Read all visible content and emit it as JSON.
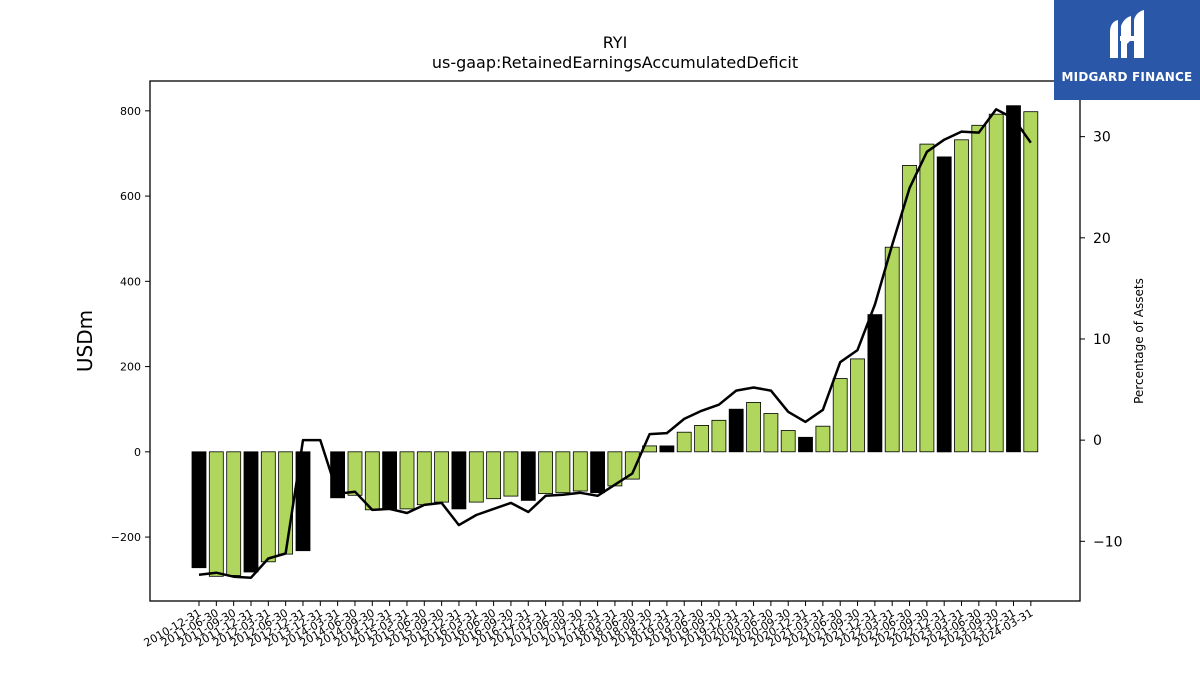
{
  "brand": {
    "name": "MIDGARD FINANCE",
    "bg_color": "#2a57a8"
  },
  "chart_data": {
    "type": "bar",
    "title": "RYI",
    "subtitle": "us-gaap:RetainedEarningsAccumulatedDeficit",
    "ylabel": "USDm",
    "y2label": "Percentage of Assets",
    "ylim": [
      -350,
      870
    ],
    "y2lim": [
      -15.9,
      35.5
    ],
    "yticks": [
      -200,
      0,
      200,
      400,
      600,
      800
    ],
    "y2ticks": [
      -10,
      0,
      10,
      20,
      30
    ],
    "grid": false,
    "bar_colors": {
      "annual": "#000000",
      "quarterly": "#b0d65e"
    },
    "line_color": "#000000",
    "x_tick_labels": [
      "2010-12-31",
      "2011-06-30",
      "2011-09-30",
      "2011-12-31",
      "2012-03-31",
      "2012-06-30",
      "2012-12-31",
      "2013-12-31",
      "2014-03-31",
      "2014-06-30",
      "2014-09-30",
      "2014-12-31",
      "2015-03-31",
      "2015-06-30",
      "2015-09-30",
      "2015-12-31",
      "2016-03-31",
      "2016-06-30",
      "2016-09-30",
      "2016-12-31",
      "2017-03-31",
      "2017-06-30",
      "2017-09-30",
      "2017-12-31",
      "2018-03-31",
      "2018-06-30",
      "2018-09-30",
      "2018-12-31",
      "2019-03-31",
      "2019-06-30",
      "2019-09-30",
      "2019-12-31",
      "2020-03-31",
      "2020-06-30",
      "2020-09-30",
      "2020-12-31",
      "2021-03-31",
      "2021-06-30",
      "2021-09-30",
      "2021-12-31",
      "2022-03-31",
      "2022-06-30",
      "2022-09-30",
      "2022-12-31",
      "2023-03-31",
      "2023-06-30",
      "2023-09-30",
      "2023-12-31",
      "2024-03-31"
    ],
    "bars": [
      {
        "i": 0,
        "value": -272,
        "annual": true
      },
      {
        "i": 1,
        "value": -292,
        "annual": false
      },
      {
        "i": 2,
        "value": -290,
        "annual": false
      },
      {
        "i": 3,
        "value": -282,
        "annual": true
      },
      {
        "i": 4,
        "value": -258,
        "annual": false
      },
      {
        "i": 5,
        "value": -240,
        "annual": false
      },
      {
        "i": 6,
        "value": -232,
        "annual": true
      },
      {
        "i": 8,
        "value": -108,
        "annual": true
      },
      {
        "i": 9,
        "value": -102,
        "annual": false
      },
      {
        "i": 10,
        "value": -136,
        "annual": false
      },
      {
        "i": 11,
        "value": -134,
        "annual": true
      },
      {
        "i": 12,
        "value": -134,
        "annual": false
      },
      {
        "i": 13,
        "value": -124,
        "annual": false
      },
      {
        "i": 14,
        "value": -118,
        "annual": false
      },
      {
        "i": 15,
        "value": -134,
        "annual": true
      },
      {
        "i": 16,
        "value": -118,
        "annual": false
      },
      {
        "i": 17,
        "value": -110,
        "annual": false
      },
      {
        "i": 18,
        "value": -104,
        "annual": false
      },
      {
        "i": 19,
        "value": -114,
        "annual": true
      },
      {
        "i": 20,
        "value": -98,
        "annual": false
      },
      {
        "i": 21,
        "value": -96,
        "annual": false
      },
      {
        "i": 22,
        "value": -92,
        "annual": false
      },
      {
        "i": 23,
        "value": -96,
        "annual": true
      },
      {
        "i": 24,
        "value": -80,
        "annual": false
      },
      {
        "i": 25,
        "value": -64,
        "annual": false
      },
      {
        "i": 26,
        "value": 14,
        "annual": false
      },
      {
        "i": 27,
        "value": 14,
        "annual": true
      },
      {
        "i": 28,
        "value": 46,
        "annual": false
      },
      {
        "i": 29,
        "value": 62,
        "annual": false
      },
      {
        "i": 30,
        "value": 74,
        "annual": false
      },
      {
        "i": 31,
        "value": 100,
        "annual": true
      },
      {
        "i": 32,
        "value": 116,
        "annual": false
      },
      {
        "i": 33,
        "value": 90,
        "annual": false
      },
      {
        "i": 34,
        "value": 50,
        "annual": false
      },
      {
        "i": 35,
        "value": 34,
        "annual": true
      },
      {
        "i": 36,
        "value": 60,
        "annual": false
      },
      {
        "i": 37,
        "value": 172,
        "annual": false
      },
      {
        "i": 38,
        "value": 218,
        "annual": false
      },
      {
        "i": 39,
        "value": 322,
        "annual": true
      },
      {
        "i": 40,
        "value": 480,
        "annual": false
      },
      {
        "i": 41,
        "value": 672,
        "annual": false
      },
      {
        "i": 42,
        "value": 722,
        "annual": false
      },
      {
        "i": 43,
        "value": 692,
        "annual": true
      },
      {
        "i": 44,
        "value": 732,
        "annual": false
      },
      {
        "i": 45,
        "value": 766,
        "annual": false
      },
      {
        "i": 46,
        "value": 792,
        "annual": false
      },
      {
        "i": 47,
        "value": 812,
        "annual": true
      },
      {
        "i": 48,
        "value": 798,
        "annual": false
      }
    ],
    "pct_assets_line": [
      -13.3,
      -13.1,
      -13.5,
      -13.6,
      -11.7,
      -11.2,
      0.0,
      0.0,
      -5.3,
      -5.1,
      -6.9,
      -6.8,
      -7.2,
      -6.4,
      -6.2,
      -8.4,
      -7.4,
      -6.8,
      -6.2,
      -7.1,
      -5.5,
      -5.4,
      -5.2,
      -5.5,
      -4.4,
      -3.3,
      0.6,
      0.7,
      2.1,
      2.9,
      3.5,
      4.9,
      5.2,
      4.9,
      2.8,
      1.8,
      3.0,
      7.7,
      8.9,
      13.4,
      19.3,
      24.9,
      28.5,
      29.7,
      30.5,
      30.4,
      32.7,
      31.8,
      29.4
    ]
  }
}
